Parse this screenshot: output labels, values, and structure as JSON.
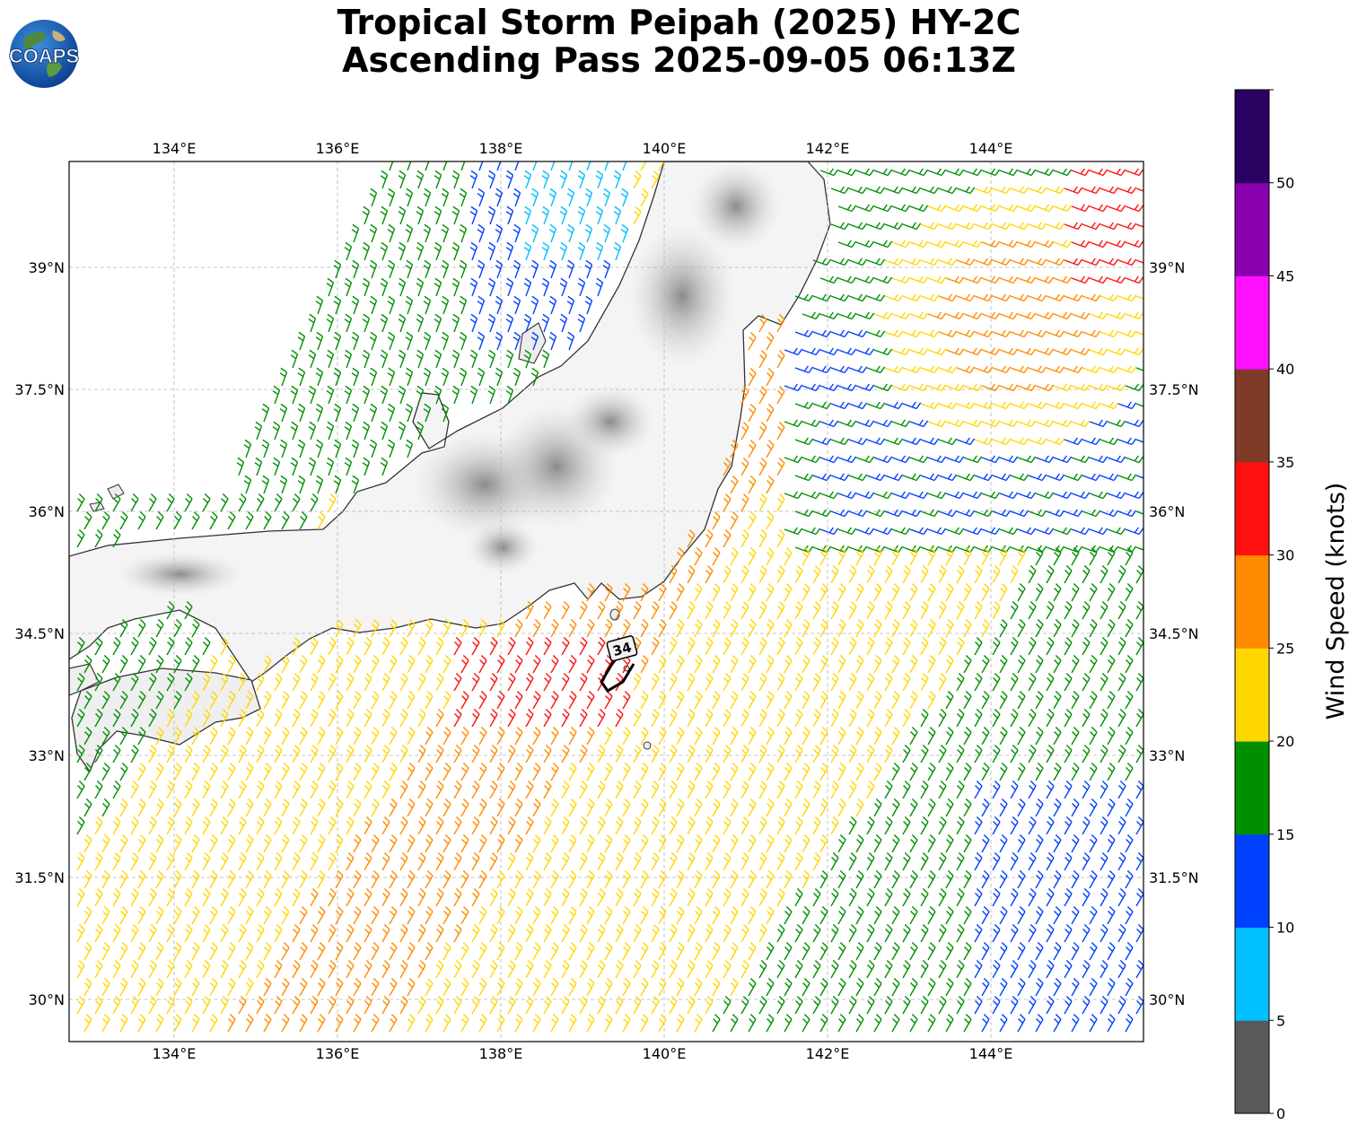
{
  "header": {
    "title_line1": "Tropical Storm Peipah (2025) HY-2C",
    "title_line2": "Ascending Pass 2025-09-05 06:13Z",
    "logo_text": "COAPS"
  },
  "map": {
    "lon_ticks": [
      "134°E",
      "136°E",
      "138°E",
      "140°E",
      "142°E",
      "144°E"
    ],
    "lat_ticks": [
      "39°N",
      "37.5°N",
      "36°N",
      "34.5°N",
      "33°N",
      "31.5°N",
      "30°N"
    ],
    "storm_label": "34",
    "colors": {
      "land_coast": "#333333",
      "grid": "#b0b0b0"
    }
  },
  "colorbar": {
    "title": "Wind Speed (knots)",
    "ticks": [
      "0",
      "5",
      "10",
      "15",
      "20",
      "25",
      "30",
      "35",
      "40",
      "45",
      "50"
    ],
    "colors": [
      "#595959",
      "#00bfff",
      "#0040ff",
      "#008f00",
      "#ffd700",
      "#ff8c00",
      "#ff1010",
      "#7f3a28",
      "#ff10ff",
      "#8a00b0",
      "#2a0060"
    ]
  },
  "wind_field": {
    "regions": [
      {
        "name": "sea-of-japan-green-swath",
        "speed_band": "15-20"
      },
      {
        "name": "pacific-yellow-orange-swath",
        "speed_band": "20-30"
      },
      {
        "name": "core-red-band",
        "speed_band": "30-35"
      },
      {
        "name": "northeast-red-orange-circulation",
        "speed_band": "25-35"
      }
    ]
  }
}
